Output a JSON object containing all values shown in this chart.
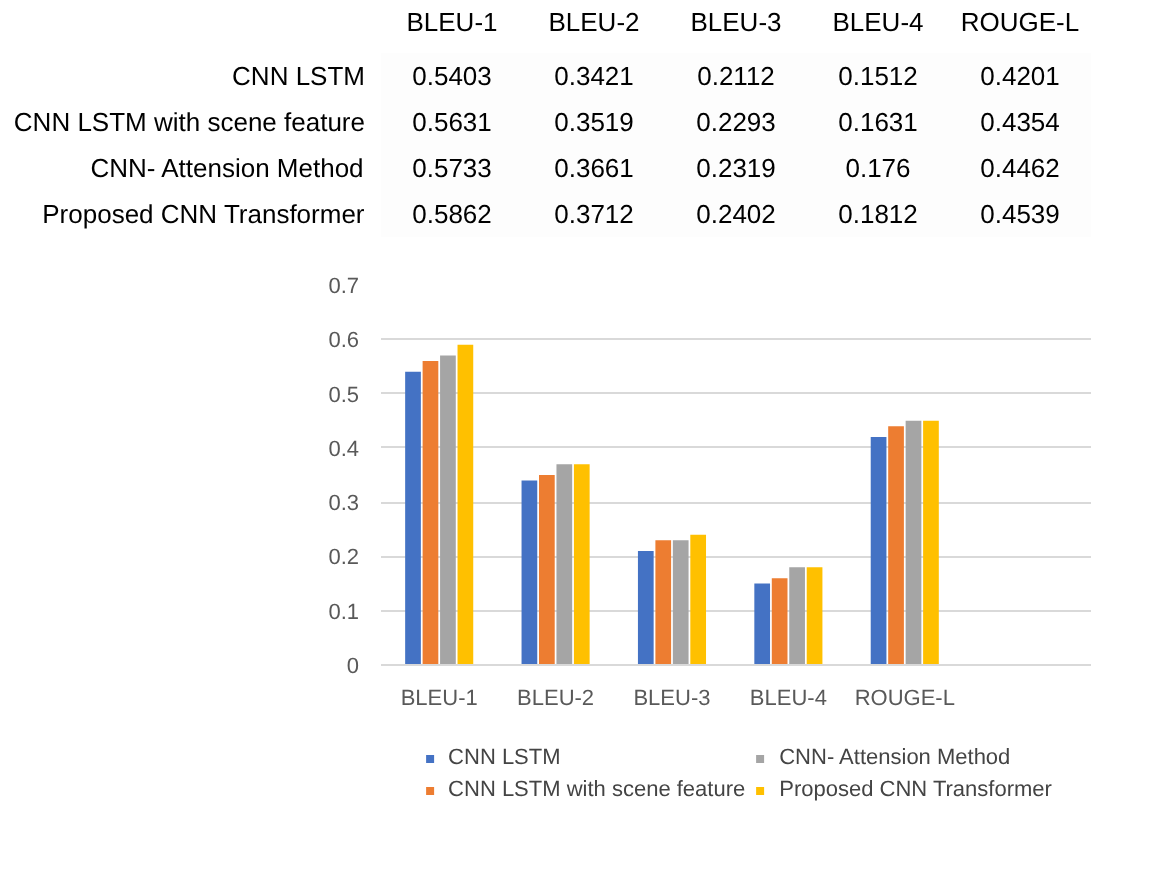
{
  "chart_data": [
    {
      "type": "heatmap",
      "categories": [
        "BLEU-1",
        "BLEU-2",
        "BLEU-3",
        "BLEU-4",
        "ROUGE-L"
      ],
      "data_labels": true,
      "y_categories": [
        "CNN LSTM",
        "CNN LSTM with scene feature",
        "CNN- Attension Method",
        "Proposed CNN Transformer"
      ],
      "cells": [
        [
          0.5403,
          0.3421,
          0.2112,
          0.1512,
          0.4201
        ],
        [
          0.5631,
          0.3519,
          0.2293,
          0.1631,
          0.4354
        ],
        [
          0.5733,
          0.3661,
          0.2319,
          0.176,
          0.4462
        ],
        [
          0.5862,
          0.3712,
          0.2402,
          0.1812,
          0.4539
        ]
      ]
    },
    {
      "type": "bar",
      "categories": [
        "BLEU-1",
        "BLEU-2",
        "BLEU-3",
        "BLEU-4",
        "ROUGE-L"
      ],
      "series": [
        {
          "name": "CNN LSTM",
          "color": "#4472c4",
          "values": [
            0.54,
            0.34,
            0.21,
            0.15,
            0.42
          ]
        },
        {
          "name": "CNN LSTM with scene feature",
          "color": "#ed7d31",
          "values": [
            0.56,
            0.35,
            0.23,
            0.16,
            0.44
          ]
        },
        {
          "name": "CNN- Attension Method",
          "color": "#a5a5a5",
          "values": [
            0.57,
            0.37,
            0.23,
            0.18,
            0.45
          ]
        },
        {
          "name": "Proposed CNN Transformer",
          "color": "#ffc000",
          "values": [
            0.59,
            0.37,
            0.24,
            0.18,
            0.45
          ]
        }
      ],
      "ylim": [
        0,
        0.7
      ],
      "yticks": [
        0,
        0.1,
        0.2,
        0.3,
        0.4,
        0.5,
        0.6,
        0.7
      ],
      "grid": "y",
      "legend": "bottom"
    }
  ]
}
